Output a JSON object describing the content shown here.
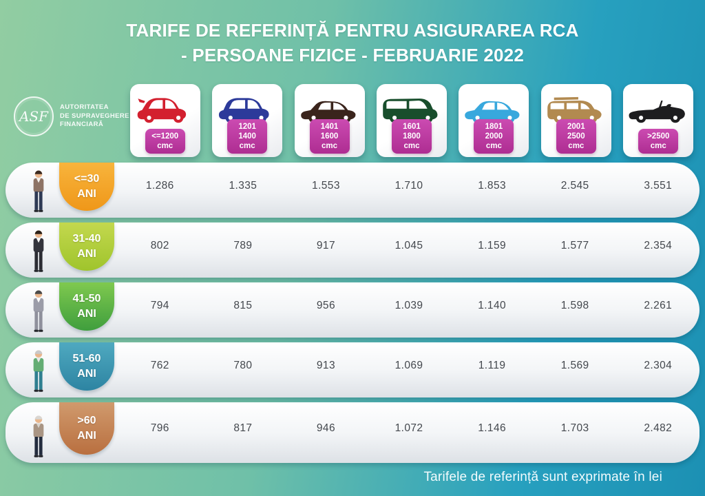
{
  "title": {
    "line1": "TARIFE DE REFERINȚĂ PENTRU ASIGURAREA RCA",
    "line2": "- PERSOANE FIZICE - FEBRUARIE 2022"
  },
  "logo": {
    "acronym": "ASF",
    "org_lines": [
      "AUTORITATEA",
      "DE SUPRAVEGHERE",
      "FINANCIARĂ"
    ]
  },
  "colors": {
    "bg_left": "#92cda2",
    "bg_mid": "#6fc0a8",
    "bg_right": "#27a0bf",
    "bg_right_deep": "#1c90b3",
    "capacity_badge_top": "#cb4bb1",
    "capacity_badge_bottom": "#ae2d92",
    "row_top": "#ffffff",
    "row_bottom": "#dde1e6"
  },
  "columns": [
    {
      "capacity_lines": [
        "<=1200",
        "cmc"
      ],
      "car": {
        "type": "city",
        "color": "#d3202f"
      }
    },
    {
      "capacity_lines": [
        "1201",
        "1400",
        "cmc"
      ],
      "car": {
        "type": "hatch",
        "color": "#2c3a9a"
      }
    },
    {
      "capacity_lines": [
        "1401",
        "1600",
        "cmc"
      ],
      "car": {
        "type": "sedan",
        "color": "#3a241c"
      }
    },
    {
      "capacity_lines": [
        "1601",
        "1800",
        "cmc"
      ],
      "car": {
        "type": "van",
        "color": "#184e2c"
      }
    },
    {
      "capacity_lines": [
        "1801",
        "2000",
        "cmc"
      ],
      "car": {
        "type": "sedan",
        "color": "#38a8dd"
      }
    },
    {
      "capacity_lines": [
        "2001",
        "2500",
        "cmc"
      ],
      "car": {
        "type": "suv",
        "color": "#b28a50"
      }
    },
    {
      "capacity_lines": [
        ">2500",
        "cmc"
      ],
      "car": {
        "type": "convertible",
        "color": "#1d1d1f"
      }
    }
  ],
  "rows": [
    {
      "age_lines": [
        "<=30",
        "ANI"
      ],
      "badge_gradient": [
        "#f8b43c",
        "#ef9719"
      ],
      "person": {
        "hair": "#3a2a20",
        "skin": "#eab68c",
        "jacket": "#8d7365",
        "shirt": "#f5f2ee",
        "pants": "#2e3a55"
      },
      "values": [
        "1.286",
        "1.335",
        "1.553",
        "1.710",
        "1.853",
        "2.545",
        "3.551"
      ]
    },
    {
      "age_lines": [
        "31-40",
        "ANI"
      ],
      "badge_gradient": [
        "#c3d84e",
        "#9fc42c"
      ],
      "person": {
        "hair": "#2b2118",
        "skin": "#eab68c",
        "jacket": "#33343c",
        "shirt": "#ffffff",
        "pants": "#2c2d34"
      },
      "values": [
        "802",
        "789",
        "917",
        "1.045",
        "1.159",
        "1.577",
        "2.354"
      ]
    },
    {
      "age_lines": [
        "41-50",
        "ANI"
      ],
      "badge_gradient": [
        "#7fc94f",
        "#3f9e3d"
      ],
      "person": {
        "hair": "#4a4a4a",
        "skin": "#eab68c",
        "jacket": "#9b9ca8",
        "shirt": "#ffffff",
        "pants": "#8f909c"
      },
      "values": [
        "794",
        "815",
        "956",
        "1.039",
        "1.140",
        "1.598",
        "2.261"
      ]
    },
    {
      "age_lines": [
        "51-60",
        "ANI"
      ],
      "badge_gradient": [
        "#4fa9c0",
        "#2d84a2"
      ],
      "person": {
        "hair": "#c9c9c9",
        "skin": "#eab68c",
        "jacket": "#64ad74",
        "shirt": "#e8e8e8",
        "pants": "#2f7f90"
      },
      "values": [
        "762",
        "780",
        "913",
        "1.069",
        "1.119",
        "1.569",
        "2.304"
      ]
    },
    {
      "age_lines": [
        ">60",
        "ANI"
      ],
      "badge_gradient": [
        "#d09a6d",
        "#b96f3f"
      ],
      "person": {
        "hair": "#d8d6d2",
        "skin": "#eab68c",
        "jacket": "#a99584",
        "shirt": "#d9d4cd",
        "pants": "#232c3e"
      },
      "values": [
        "796",
        "817",
        "946",
        "1.072",
        "1.146",
        "1.703",
        "2.482"
      ]
    }
  ],
  "footer": {
    "note": "Tarifele de referință sunt exprimate în lei"
  },
  "chart_data": {
    "type": "table",
    "title": "TARIFE DE REFERINȚĂ PENTRU ASIGURAREA RCA - PERSOANE FIZICE - FEBRUARIE 2022",
    "unit": "lei",
    "columns": [
      "<=1200 cmc",
      "1201-1400 cmc",
      "1401-1600 cmc",
      "1601-1800 cmc",
      "1801-2000 cmc",
      "2001-2500 cmc",
      ">2500 cmc"
    ],
    "rows": [
      "<=30 ANI",
      "31-40 ANI",
      "41-50 ANI",
      "51-60 ANI",
      ">60 ANI"
    ],
    "values": [
      [
        1286,
        1335,
        1553,
        1710,
        1853,
        2545,
        3551
      ],
      [
        802,
        789,
        917,
        1045,
        1159,
        1577,
        2354
      ],
      [
        794,
        815,
        956,
        1039,
        1140,
        1598,
        2261
      ],
      [
        762,
        780,
        913,
        1069,
        1119,
        1569,
        2304
      ],
      [
        796,
        817,
        946,
        1072,
        1146,
        1703,
        2482
      ]
    ],
    "note": "Tarifele de referință sunt exprimate în lei"
  }
}
